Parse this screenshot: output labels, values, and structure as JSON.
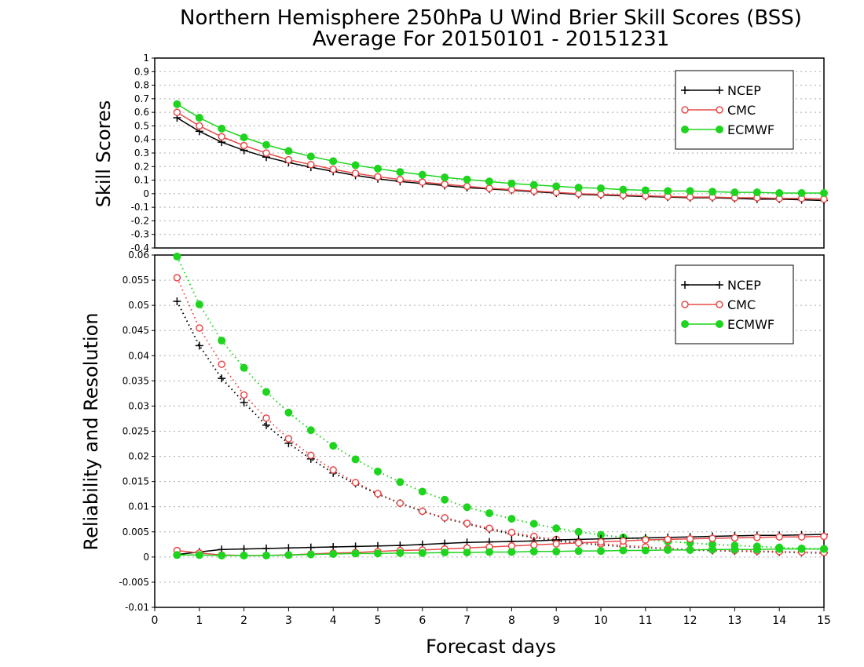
{
  "title_line1": "Northern Hemisphere 250hPa U Wind Brier Skill Scores (BSS)",
  "title_line2": "Average For 20150101 - 20151231",
  "colors": {
    "NCEP": "#000000",
    "CMC": "#e84a4a",
    "ECMWF": "#1ed41e"
  },
  "chart_data": [
    {
      "type": "line",
      "ylabel": "Skill Scores",
      "xlim": [
        0,
        15
      ],
      "ylim": [
        -0.4,
        1
      ],
      "yticks": [
        -0.4,
        -0.3,
        -0.2,
        -0.1,
        0,
        0.1,
        0.2,
        0.3,
        0.4,
        0.5,
        0.6,
        0.7,
        0.8,
        0.9,
        1
      ],
      "ytick_labels": [
        "-0.4",
        "-0.3",
        "-0.2",
        "-0.1",
        "0",
        "0.1",
        "0.2",
        "0.3",
        "0.4",
        "0.5",
        "0.6",
        "0.7",
        "0.8",
        "0.9",
        "1"
      ],
      "grid": true,
      "legend": "top-right",
      "x": [
        0.5,
        1,
        1.5,
        2,
        2.5,
        3,
        3.5,
        4,
        4.5,
        5,
        5.5,
        6,
        6.5,
        7,
        7.5,
        8,
        8.5,
        9,
        9.5,
        10,
        10.5,
        11,
        11.5,
        12,
        12.5,
        13,
        13.5,
        14,
        14.5,
        15
      ],
      "series": [
        {
          "name": "NCEP",
          "marker": "plus",
          "style": "solid",
          "values": [
            0.56,
            0.46,
            0.38,
            0.32,
            0.27,
            0.23,
            0.195,
            0.165,
            0.135,
            0.11,
            0.09,
            0.075,
            0.06,
            0.045,
            0.035,
            0.025,
            0.015,
            0.005,
            -0.005,
            -0.01,
            -0.015,
            -0.02,
            -0.025,
            -0.03,
            -0.03,
            -0.035,
            -0.04,
            -0.04,
            -0.045,
            -0.05
          ]
        },
        {
          "name": "CMC",
          "marker": "circle-open",
          "style": "solid",
          "values": [
            0.6,
            0.5,
            0.42,
            0.355,
            0.3,
            0.25,
            0.215,
            0.18,
            0.15,
            0.125,
            0.105,
            0.085,
            0.07,
            0.055,
            0.04,
            0.03,
            0.02,
            0.01,
            0.0,
            -0.005,
            -0.01,
            -0.015,
            -0.02,
            -0.025,
            -0.025,
            -0.03,
            -0.03,
            -0.035,
            -0.035,
            -0.04
          ]
        },
        {
          "name": "ECMWF",
          "marker": "circle-filled",
          "style": "solid",
          "values": [
            0.66,
            0.56,
            0.48,
            0.415,
            0.36,
            0.315,
            0.275,
            0.24,
            0.21,
            0.185,
            0.16,
            0.14,
            0.12,
            0.105,
            0.09,
            0.075,
            0.065,
            0.055,
            0.045,
            0.04,
            0.03,
            0.025,
            0.02,
            0.02,
            0.015,
            0.01,
            0.01,
            0.005,
            0.005,
            0.005
          ]
        }
      ]
    },
    {
      "type": "line",
      "ylabel": "Reliability and Resolution",
      "xlabel": "Forecast days",
      "xlim": [
        0,
        15
      ],
      "xticks": [
        0,
        1,
        2,
        3,
        4,
        5,
        6,
        7,
        8,
        9,
        10,
        11,
        12,
        13,
        14,
        15
      ],
      "xtick_labels": [
        "0",
        "1",
        "2",
        "3",
        "4",
        "5",
        "6",
        "7",
        "8",
        "9",
        "10",
        "11",
        "12",
        "13",
        "14",
        "15"
      ],
      "ylim": [
        -0.01,
        0.06
      ],
      "yticks": [
        -0.01,
        -0.005,
        0,
        0.005,
        0.01,
        0.015,
        0.02,
        0.025,
        0.03,
        0.035,
        0.04,
        0.045,
        0.05,
        0.055,
        0.06
      ],
      "ytick_labels": [
        "-0.01",
        "-0.005",
        "0",
        "0.005",
        "0.01",
        "0.015",
        "0.02",
        "0.025",
        "0.03",
        "0.035",
        "0.04",
        "0.045",
        "0.05",
        "0.055",
        "0.06"
      ],
      "grid": true,
      "legend": "top-right",
      "x": [
        0.5,
        1,
        1.5,
        2,
        2.5,
        3,
        3.5,
        4,
        4.5,
        5,
        5.5,
        6,
        6.5,
        7,
        7.5,
        8,
        8.5,
        9,
        9.5,
        10,
        10.5,
        11,
        11.5,
        12,
        12.5,
        13,
        13.5,
        14,
        14.5,
        15
      ],
      "series": [
        {
          "name": "NCEP",
          "group": "reliability",
          "marker": "plus",
          "style": "solid",
          "values": [
            0.0005,
            0.001,
            0.0015,
            0.0016,
            0.0017,
            0.0018,
            0.0019,
            0.002,
            0.0021,
            0.0022,
            0.0023,
            0.0025,
            0.0027,
            0.0029,
            0.003,
            0.0031,
            0.0032,
            0.0034,
            0.0035,
            0.0036,
            0.0037,
            0.0038,
            0.0039,
            0.004,
            0.0041,
            0.0042,
            0.0043,
            0.0043,
            0.0044,
            0.0045
          ]
        },
        {
          "name": "CMC",
          "group": "reliability",
          "marker": "circle-open",
          "style": "solid",
          "values": [
            0.0013,
            0.0008,
            0.0004,
            0.0003,
            0.0003,
            0.0004,
            0.0006,
            0.0008,
            0.0009,
            0.0011,
            0.0013,
            0.0014,
            0.0016,
            0.0018,
            0.002,
            0.0022,
            0.0024,
            0.0026,
            0.0028,
            0.003,
            0.0032,
            0.0034,
            0.0035,
            0.0036,
            0.0037,
            0.0038,
            0.0039,
            0.004,
            0.004,
            0.0041
          ]
        },
        {
          "name": "ECMWF",
          "group": "reliability",
          "marker": "circle-filled",
          "style": "solid",
          "values": [
            0.0004,
            0.0004,
            0.0003,
            0.0003,
            0.0003,
            0.0004,
            0.0005,
            0.0006,
            0.0007,
            0.0007,
            0.0008,
            0.0008,
            0.0009,
            0.0009,
            0.001,
            0.001,
            0.0011,
            0.0011,
            0.0012,
            0.0012,
            0.0013,
            0.0013,
            0.0014,
            0.0014,
            0.0015,
            0.0015,
            0.0015,
            0.0016,
            0.0016,
            0.0016
          ]
        },
        {
          "name": "NCEP",
          "group": "resolution",
          "marker": "plus",
          "style": "dotted",
          "values": [
            0.0508,
            0.042,
            0.0355,
            0.0307,
            0.0262,
            0.0226,
            0.0195,
            0.0167,
            0.0146,
            0.0125,
            0.0107,
            0.0091,
            0.0077,
            0.0066,
            0.0055,
            0.0046,
            0.0039,
            0.0032,
            0.0028,
            0.0024,
            0.0021,
            0.0019,
            0.0016,
            0.0014,
            0.0013,
            0.0012,
            0.0011,
            0.001,
            0.0009,
            0.0008
          ]
        },
        {
          "name": "CMC",
          "group": "resolution",
          "marker": "circle-open",
          "style": "dotted",
          "values": [
            0.0555,
            0.0455,
            0.0383,
            0.0322,
            0.0276,
            0.0235,
            0.0202,
            0.0173,
            0.0148,
            0.0126,
            0.0107,
            0.0091,
            0.0078,
            0.0067,
            0.0057,
            0.0049,
            0.0041,
            0.0035,
            0.003,
            0.0026,
            0.0023,
            0.002,
            0.0017,
            0.0015,
            0.0014,
            0.0013,
            0.0012,
            0.0011,
            0.001,
            0.0009
          ]
        },
        {
          "name": "ECMWF",
          "group": "resolution",
          "marker": "circle-filled",
          "style": "dotted",
          "values": [
            0.0597,
            0.0502,
            0.043,
            0.0376,
            0.0328,
            0.0287,
            0.0252,
            0.0221,
            0.0194,
            0.017,
            0.0149,
            0.013,
            0.0114,
            0.0099,
            0.0087,
            0.0076,
            0.0066,
            0.0057,
            0.005,
            0.0044,
            0.0039,
            0.0035,
            0.0031,
            0.0028,
            0.0025,
            0.0023,
            0.0021,
            0.0019,
            0.0017,
            0.0016
          ]
        }
      ]
    }
  ]
}
